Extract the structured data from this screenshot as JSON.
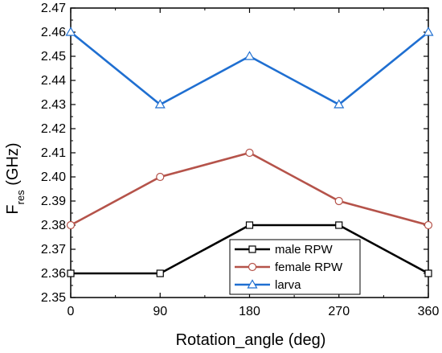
{
  "chart_data": {
    "type": "line",
    "x": [
      0,
      90,
      180,
      270,
      360
    ],
    "xlim": [
      0,
      360
    ],
    "ylim": [
      2.35,
      2.47
    ],
    "xticks": [
      "0",
      "90",
      "180",
      "270",
      "360"
    ],
    "yticks": [
      "2.35",
      "2.36",
      "2.37",
      "2.38",
      "2.39",
      "2.40",
      "2.41",
      "2.42",
      "2.43",
      "2.44",
      "2.45",
      "2.46",
      "2.47"
    ],
    "xlabel": "Rotation_angle (deg)",
    "ylabel_main": "F",
    "ylabel_sub": "res",
    "ylabel_unit": " (GHz)",
    "grid": false,
    "legend_position": "bottom-center",
    "series": [
      {
        "name": "male RPW",
        "values": [
          2.36,
          2.36,
          2.38,
          2.38,
          2.36
        ],
        "color": "#000000",
        "marker": "square"
      },
      {
        "name": "female RPW",
        "values": [
          2.38,
          2.4,
          2.41,
          2.39,
          2.38
        ],
        "color": "#b5534a",
        "marker": "circle"
      },
      {
        "name": "larva",
        "values": [
          2.46,
          2.43,
          2.45,
          2.43,
          2.46
        ],
        "color": "#1f6fd1",
        "marker": "triangle"
      }
    ]
  }
}
